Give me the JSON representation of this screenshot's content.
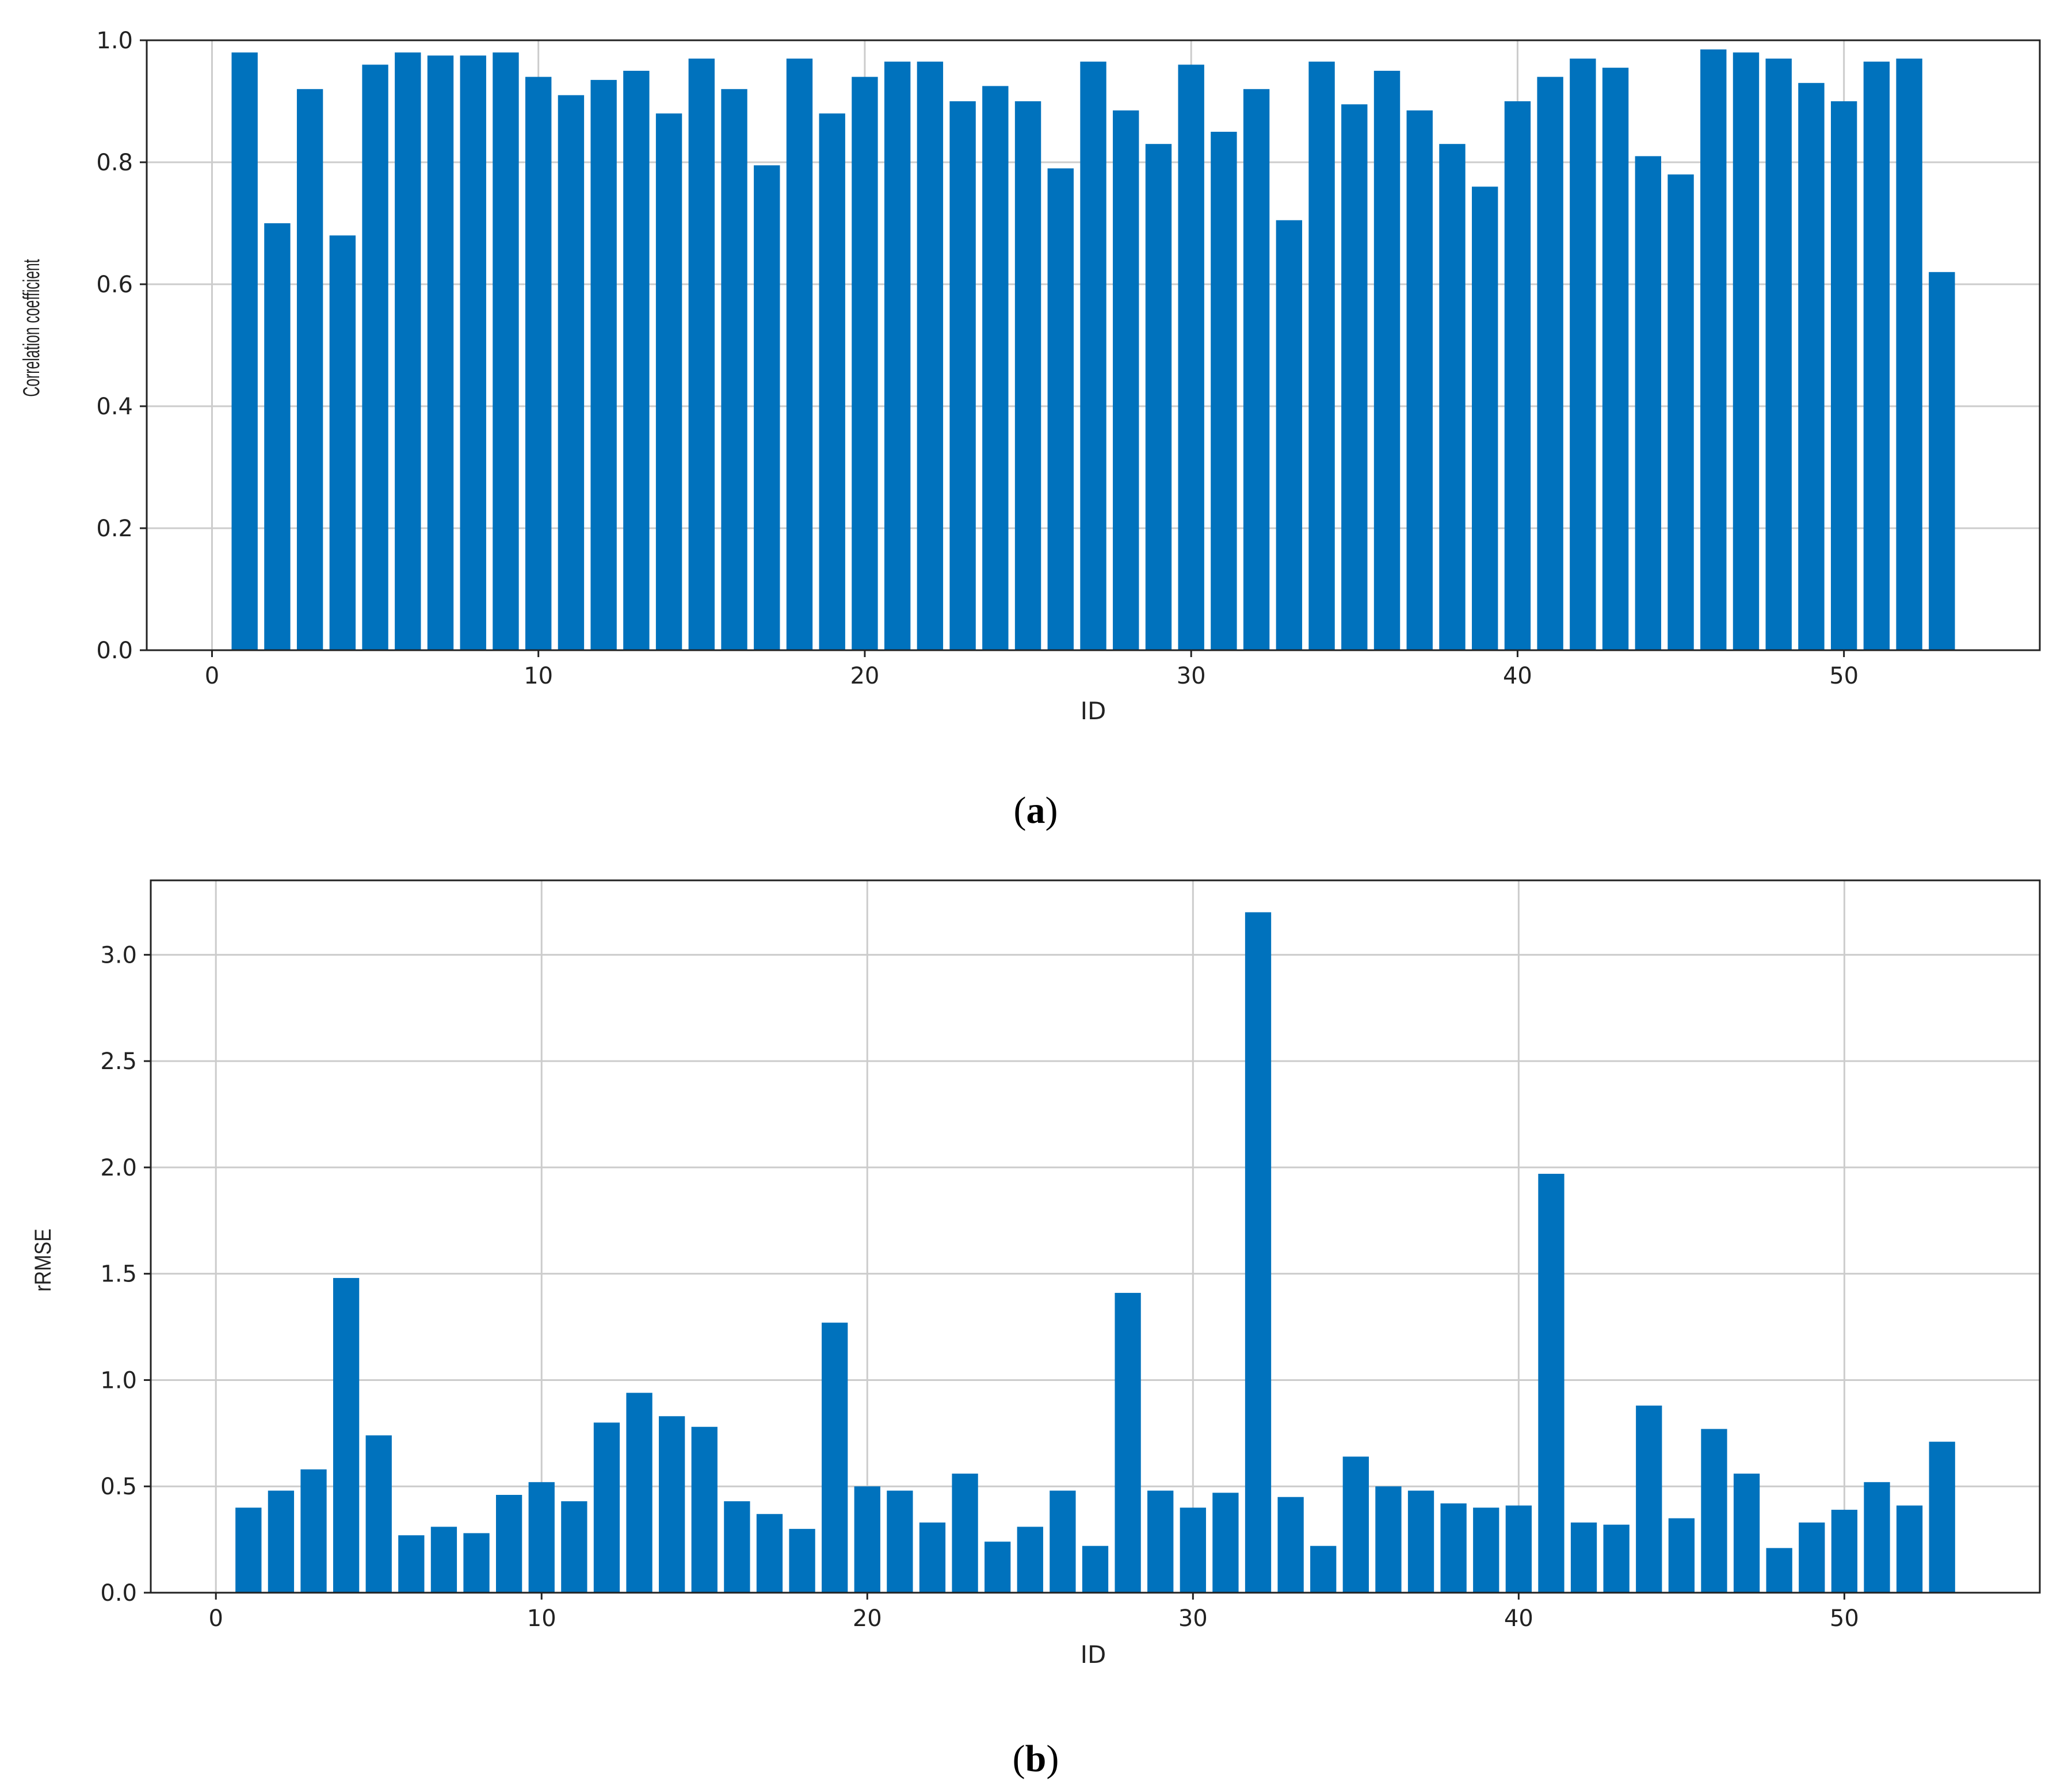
{
  "colors": {
    "bar": "#0072bd",
    "grid": "#cccccc",
    "axis": "#222222"
  },
  "chart_data": [
    {
      "type": "bar",
      "panel_label": "a",
      "xlabel": "ID",
      "ylabel": "Correlation coefficient",
      "xlim": [
        -2,
        56
      ],
      "ylim": [
        0,
        1.0
      ],
      "xticks": [
        0,
        10,
        20,
        30,
        40,
        50
      ],
      "yticks": [
        0.0,
        0.2,
        0.4,
        0.6,
        0.8,
        1.0
      ],
      "ytick_decimals": 1,
      "grid": true,
      "x": [
        1,
        2,
        3,
        4,
        5,
        6,
        7,
        8,
        9,
        10,
        11,
        12,
        13,
        14,
        15,
        16,
        17,
        18,
        19,
        20,
        21,
        22,
        23,
        24,
        25,
        26,
        27,
        28,
        29,
        30,
        31,
        32,
        33,
        34,
        35,
        36,
        37,
        38,
        39,
        40,
        41,
        42,
        43,
        44,
        45,
        46,
        47,
        48,
        49,
        50,
        51,
        52,
        53
      ],
      "values": [
        0.98,
        0.7,
        0.92,
        0.68,
        0.96,
        0.98,
        0.975,
        0.975,
        0.98,
        0.94,
        0.91,
        0.935,
        0.95,
        0.88,
        0.97,
        0.92,
        0.795,
        0.97,
        0.88,
        0.94,
        0.965,
        0.965,
        0.9,
        0.925,
        0.9,
        0.79,
        0.965,
        0.885,
        0.83,
        0.96,
        0.85,
        0.92,
        0.705,
        0.965,
        0.895,
        0.95,
        0.885,
        0.83,
        0.76,
        0.9,
        0.94,
        0.97,
        0.955,
        0.81,
        0.78,
        0.985,
        0.98,
        0.97,
        0.93,
        0.9,
        0.965,
        0.97,
        0.62
      ]
    },
    {
      "type": "bar",
      "panel_label": "b",
      "xlabel": "ID",
      "ylabel": "rRMSE",
      "xlim": [
        -2,
        56
      ],
      "ylim": [
        0,
        3.35
      ],
      "xticks": [
        0,
        10,
        20,
        30,
        40,
        50
      ],
      "yticks": [
        0.0,
        0.5,
        1.0,
        1.5,
        2.0,
        2.5,
        3.0
      ],
      "ytick_decimals": 1,
      "grid": true,
      "x": [
        1,
        2,
        3,
        4,
        5,
        6,
        7,
        8,
        9,
        10,
        11,
        12,
        13,
        14,
        15,
        16,
        17,
        18,
        19,
        20,
        21,
        22,
        23,
        24,
        25,
        26,
        27,
        28,
        29,
        30,
        31,
        32,
        33,
        34,
        35,
        36,
        37,
        38,
        39,
        40,
        41,
        42,
        43,
        44,
        45,
        46,
        47,
        48,
        49,
        50,
        51,
        52,
        53
      ],
      "values": [
        0.4,
        0.48,
        0.58,
        1.48,
        0.74,
        0.27,
        0.31,
        0.28,
        0.46,
        0.52,
        0.43,
        0.8,
        0.94,
        0.83,
        0.78,
        0.43,
        0.37,
        0.3,
        1.27,
        0.5,
        0.48,
        0.33,
        0.56,
        0.24,
        0.31,
        0.48,
        0.22,
        1.41,
        0.48,
        0.4,
        0.47,
        3.2,
        0.45,
        0.22,
        0.64,
        0.5,
        0.48,
        0.42,
        0.4,
        0.41,
        1.97,
        0.33,
        0.32,
        0.88,
        0.35,
        0.77,
        0.56,
        0.21,
        0.33,
        0.39,
        0.52,
        0.41,
        0.71
      ]
    }
  ]
}
